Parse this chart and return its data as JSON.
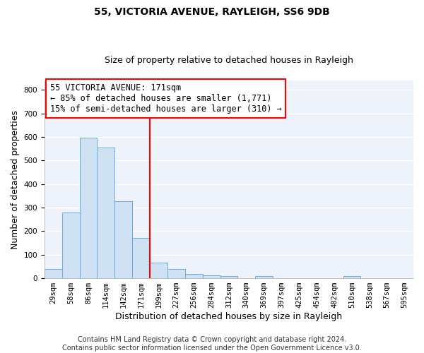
{
  "title": "55, VICTORIA AVENUE, RAYLEIGH, SS6 9DB",
  "subtitle": "Size of property relative to detached houses in Rayleigh",
  "xlabel": "Distribution of detached houses by size in Rayleigh",
  "ylabel": "Number of detached properties",
  "bar_color": "#cfe2f3",
  "bar_edge_color": "#6aacda",
  "background_color": "#eef2fb",
  "grid_color": "#ffffff",
  "categories": [
    "29sqm",
    "58sqm",
    "86sqm",
    "114sqm",
    "142sqm",
    "171sqm",
    "199sqm",
    "227sqm",
    "256sqm",
    "284sqm",
    "312sqm",
    "340sqm",
    "369sqm",
    "397sqm",
    "425sqm",
    "454sqm",
    "482sqm",
    "510sqm",
    "538sqm",
    "567sqm",
    "595sqm"
  ],
  "values": [
    38,
    280,
    597,
    555,
    326,
    170,
    65,
    38,
    17,
    12,
    10,
    0,
    8,
    0,
    0,
    0,
    0,
    8,
    0,
    0,
    0
  ],
  "ylim": [
    0,
    840
  ],
  "yticks": [
    0,
    100,
    200,
    300,
    400,
    500,
    600,
    700,
    800
  ],
  "marker_index": 5,
  "marker_label": "55 VICTORIA AVENUE: 171sqm",
  "annotation_line1": "← 85% of detached houses are smaller (1,771)",
  "annotation_line2": "15% of semi-detached houses are larger (310) →",
  "footer_line1": "Contains HM Land Registry data © Crown copyright and database right 2024.",
  "footer_line2": "Contains public sector information licensed under the Open Government Licence v3.0.",
  "title_fontsize": 10,
  "subtitle_fontsize": 9,
  "axis_label_fontsize": 9,
  "tick_fontsize": 7.5,
  "annotation_fontsize": 8.5,
  "footer_fontsize": 7
}
